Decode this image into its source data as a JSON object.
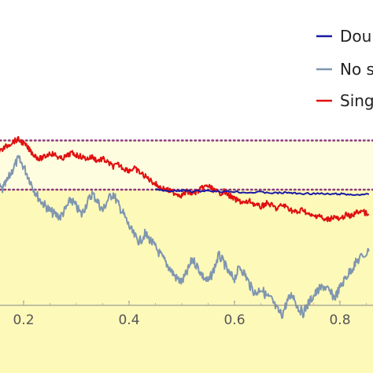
{
  "chart_data": {
    "type": "line",
    "xlim": [
      0.0,
      0.855
    ],
    "ylim": [
      0.0,
      1.0
    ],
    "x_ticks": [
      {
        "value": 0.2,
        "label": "0.2"
      },
      {
        "value": 0.4,
        "label": "0.4"
      },
      {
        "value": 0.6,
        "label": "0.6"
      },
      {
        "value": 0.8,
        "label": "0.8"
      }
    ],
    "bands": [
      {
        "from": 0.855,
        "to": 1.0,
        "color": "#ffffff"
      },
      {
        "from": 0.6,
        "to": 0.855,
        "color": "#fefde0"
      },
      {
        "from": 0.0,
        "to": 0.6,
        "color": "#fdf9b9"
      }
    ],
    "reference_lines": [
      {
        "y": 0.855,
        "color": "#8a3a7a",
        "style": "dotted"
      },
      {
        "y": 0.6,
        "color": "#8a3a7a",
        "style": "dotted"
      }
    ],
    "legend_position": "top-right",
    "series": [
      {
        "name": "Doubl",
        "color": "#1a1aa6",
        "x": [
          0.45,
          0.48,
          0.5,
          0.52,
          0.55,
          0.58,
          0.6,
          0.62,
          0.65,
          0.68,
          0.7,
          0.72,
          0.75,
          0.78,
          0.8,
          0.82,
          0.855
        ],
        "y": [
          0.6,
          0.59,
          0.595,
          0.59,
          0.595,
          0.59,
          0.59,
          0.585,
          0.587,
          0.582,
          0.585,
          0.58,
          0.58,
          0.576,
          0.578,
          0.574,
          0.576
        ]
      },
      {
        "name": "No s",
        "color": "#7f96b0",
        "x": [
          0.0,
          0.01,
          0.02,
          0.03,
          0.04,
          0.05,
          0.06,
          0.07,
          0.08,
          0.09,
          0.1,
          0.11,
          0.12,
          0.13,
          0.14,
          0.15,
          0.16,
          0.17,
          0.18,
          0.19,
          0.2,
          0.21,
          0.22,
          0.23,
          0.24,
          0.25,
          0.26,
          0.27,
          0.28,
          0.29,
          0.3,
          0.31,
          0.32,
          0.33,
          0.34,
          0.35,
          0.36,
          0.37,
          0.38,
          0.39,
          0.4,
          0.41,
          0.42,
          0.43,
          0.44,
          0.45,
          0.46,
          0.47,
          0.48,
          0.49,
          0.5,
          0.51,
          0.52,
          0.53,
          0.54,
          0.55,
          0.56,
          0.57,
          0.58,
          0.59,
          0.6,
          0.61,
          0.62,
          0.63,
          0.64,
          0.65,
          0.66,
          0.67,
          0.68,
          0.69,
          0.7,
          0.71,
          0.72,
          0.73,
          0.74,
          0.75,
          0.76,
          0.77,
          0.78,
          0.79,
          0.8,
          0.81,
          0.82,
          0.83,
          0.84,
          0.855
        ],
        "y": [
          0.6,
          0.65,
          0.72,
          0.69,
          0.64,
          0.61,
          0.6,
          0.64,
          0.7,
          0.76,
          0.82,
          0.79,
          0.74,
          0.7,
          0.66,
          0.62,
          0.6,
          0.65,
          0.71,
          0.76,
          0.72,
          0.66,
          0.6,
          0.55,
          0.52,
          0.49,
          0.47,
          0.46,
          0.5,
          0.55,
          0.51,
          0.47,
          0.53,
          0.58,
          0.54,
          0.49,
          0.55,
          0.58,
          0.52,
          0.47,
          0.41,
          0.36,
          0.33,
          0.37,
          0.34,
          0.3,
          0.26,
          0.22,
          0.18,
          0.14,
          0.12,
          0.17,
          0.24,
          0.2,
          0.15,
          0.12,
          0.18,
          0.26,
          0.22,
          0.16,
          0.14,
          0.2,
          0.16,
          0.1,
          0.06,
          0.09,
          0.05,
          0.03,
          -0.02,
          -0.05,
          0.02,
          0.06,
          -0.01,
          -0.04,
          0.01,
          0.05,
          0.08,
          0.1,
          0.07,
          0.04,
          0.09,
          0.14,
          0.18,
          0.22,
          0.25,
          0.28
        ]
      },
      {
        "name": "Sing",
        "color": "#e01010",
        "x": [
          0.0,
          0.01,
          0.02,
          0.03,
          0.04,
          0.05,
          0.06,
          0.07,
          0.08,
          0.09,
          0.1,
          0.11,
          0.12,
          0.13,
          0.14,
          0.15,
          0.16,
          0.17,
          0.18,
          0.19,
          0.2,
          0.21,
          0.22,
          0.23,
          0.24,
          0.25,
          0.26,
          0.27,
          0.28,
          0.29,
          0.3,
          0.31,
          0.32,
          0.33,
          0.34,
          0.35,
          0.36,
          0.37,
          0.38,
          0.39,
          0.4,
          0.41,
          0.42,
          0.43,
          0.44,
          0.45,
          0.46,
          0.47,
          0.48,
          0.49,
          0.5,
          0.51,
          0.52,
          0.53,
          0.54,
          0.55,
          0.56,
          0.57,
          0.58,
          0.59,
          0.6,
          0.61,
          0.62,
          0.63,
          0.64,
          0.65,
          0.66,
          0.67,
          0.68,
          0.69,
          0.7,
          0.71,
          0.72,
          0.73,
          0.74,
          0.75,
          0.76,
          0.77,
          0.78,
          0.79,
          0.8,
          0.81,
          0.82,
          0.83,
          0.84,
          0.855
        ],
        "y": [
          0.79,
          0.81,
          0.82,
          0.8,
          0.83,
          0.85,
          0.84,
          0.81,
          0.8,
          0.82,
          0.85,
          0.87,
          0.84,
          0.82,
          0.8,
          0.79,
          0.81,
          0.83,
          0.85,
          0.86,
          0.84,
          0.81,
          0.78,
          0.76,
          0.77,
          0.79,
          0.78,
          0.76,
          0.77,
          0.79,
          0.78,
          0.77,
          0.76,
          0.77,
          0.75,
          0.76,
          0.74,
          0.72,
          0.73,
          0.71,
          0.7,
          0.71,
          0.69,
          0.67,
          0.65,
          0.63,
          0.61,
          0.6,
          0.59,
          0.58,
          0.57,
          0.59,
          0.58,
          0.59,
          0.61,
          0.62,
          0.6,
          0.58,
          0.59,
          0.57,
          0.55,
          0.54,
          0.53,
          0.54,
          0.52,
          0.51,
          0.53,
          0.52,
          0.5,
          0.52,
          0.51,
          0.49,
          0.48,
          0.5,
          0.47,
          0.46,
          0.47,
          0.44,
          0.45,
          0.46,
          0.44,
          0.47,
          0.46,
          0.48,
          0.49,
          0.47
        ]
      }
    ]
  }
}
